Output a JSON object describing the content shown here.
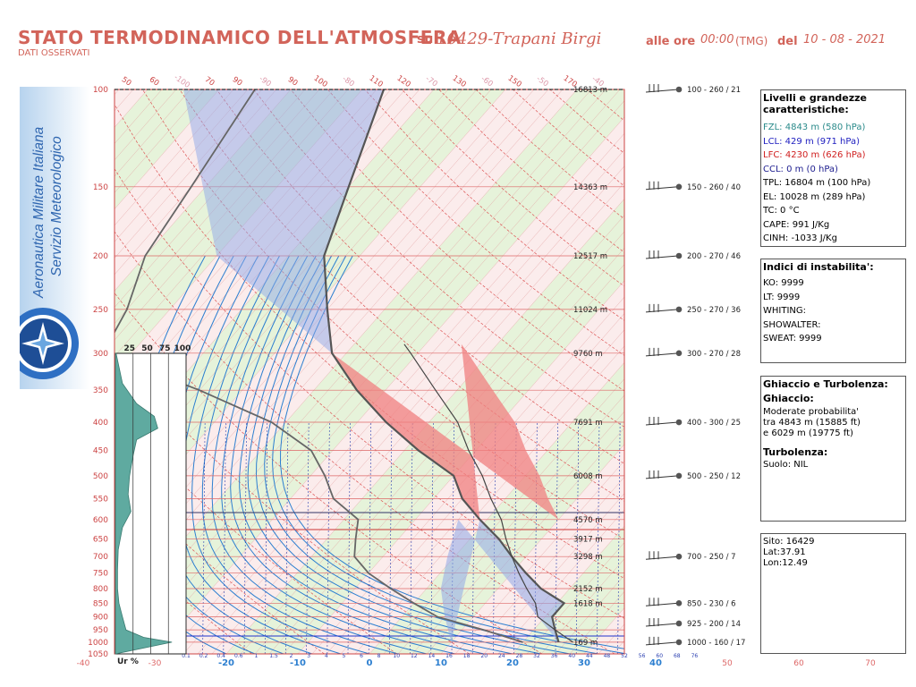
{
  "header": {
    "title": "STATO TERMODINAMICO DELL'ATMOSFERA",
    "subtitle": "DATI OSSERVATI",
    "station_label": "su",
    "station": "16429-Trapani Birgi",
    "time_label": "alle ore",
    "time": "00:00",
    "tmg": "(TMG)",
    "del_label": "del",
    "date": "10 - 08 - 2021"
  },
  "logo": {
    "line1": "Aeronautica Militare Italiana",
    "line2": "Servizio Meteorologico",
    "icon": "compass-rose-emblem"
  },
  "levels_box": {
    "title": "Livelli e grandezze caratteristiche:",
    "fzl": "FZL: 4843 m (580 hPa)",
    "lcl": "LCL: 429 m (971 hPa)",
    "lfc": "LFC: 4230 m (626 hPa)",
    "ccl": "CCL: 0 m (0 hPa)",
    "tpl": "TPL: 16804 m (100 hPa)",
    "el": "EL: 10028 m (289 hPa)",
    "tc": "TC: 0 °C",
    "cape": "CAPE: 991 J/Kg",
    "cinh": "CINH: -1033 J/Kg",
    "colors": {
      "fzl": "#2a8a8a",
      "lcl": "#2020c0",
      "lfc": "#d02020",
      "ccl": "#202090"
    }
  },
  "indices_box": {
    "title": "Indici di instabilita':",
    "ko": "KO: 9999",
    "lt": "LT: 9999",
    "whiting": "WHITING:",
    "showalter": "SHOWALTER:",
    "sweat": "SWEAT: 9999"
  },
  "ice_box": {
    "title": "Ghiaccio e Turbolenza:",
    "ice_title": "Ghiaccio:",
    "ice_l1": "Moderate probabilita'",
    "ice_l2": "tra 4843 m (15885 ft)",
    "ice_l3": "e 6029 m (19775 ft)",
    "turb_title": "Turbolenza:",
    "turb_text": "Suolo: NIL"
  },
  "site_box": {
    "site": "Sito: 16429",
    "lat": "Lat:37.91",
    "lon": "Lon:12.49"
  },
  "chart_data": {
    "type": "skew-t",
    "pressure_ticks": [
      100,
      150,
      200,
      250,
      300,
      350,
      400,
      450,
      500,
      550,
      600,
      650,
      700,
      750,
      800,
      850,
      900,
      950,
      1000,
      1050
    ],
    "height_labels": [
      {
        "p": 100,
        "h": "16813 m"
      },
      {
        "p": 150,
        "h": "14363 m"
      },
      {
        "p": 200,
        "h": "12517 m"
      },
      {
        "p": 250,
        "h": "11024 m"
      },
      {
        "p": 300,
        "h": "9760 m"
      },
      {
        "p": 400,
        "h": "7691 m"
      },
      {
        "p": 500,
        "h": "6008 m"
      },
      {
        "p": 600,
        "h": "4570 m"
      },
      {
        "p": 650,
        "h": "3917 m"
      },
      {
        "p": 700,
        "h": "3298 m"
      },
      {
        "p": 800,
        "h": "2152 m"
      },
      {
        "p": 850,
        "h": "1618 m"
      },
      {
        "p": 1000,
        "h": "169 m"
      }
    ],
    "temp_ticks_bottom": [
      -20,
      -10,
      0,
      10,
      20,
      30,
      40
    ],
    "temp_ticks_extra": [
      -40,
      -30,
      50,
      60,
      70
    ],
    "temp_ticks_top": [
      50,
      60,
      -100,
      70,
      90,
      -90,
      90,
      100,
      -80,
      110,
      120,
      -70,
      130,
      -60,
      150,
      -50,
      170,
      -40
    ],
    "mixing_ratio_ticks": [
      "0.1",
      "0.2",
      "0.4",
      "0.6",
      "1",
      "1.5",
      "2",
      "3",
      "4",
      "5",
      "6",
      "8",
      "10",
      "12",
      "14",
      "16",
      "18",
      "20",
      "24",
      "28",
      "32",
      "36",
      "40",
      "44",
      "48",
      "52",
      "56",
      "60",
      "68",
      "76"
    ],
    "rh_axis": {
      "label": "Ur %",
      "ticks": [
        "25",
        "50",
        "75",
        "100"
      ]
    },
    "winds": [
      {
        "p": 100,
        "label": "100 - 260 / 21"
      },
      {
        "p": 150,
        "label": "150 - 260 / 40"
      },
      {
        "p": 200,
        "label": "200 - 270 / 46"
      },
      {
        "p": 250,
        "label": "250 - 270 / 36"
      },
      {
        "p": 300,
        "label": "300 - 270 / 28"
      },
      {
        "p": 400,
        "label": "400 - 300 / 25"
      },
      {
        "p": 500,
        "label": "500 - 250 / 12"
      },
      {
        "p": 700,
        "label": "700 - 250 / 7"
      },
      {
        "p": 850,
        "label": "850 - 230 / 6"
      },
      {
        "p": 925,
        "label": "925 - 200 / 14"
      },
      {
        "p": 1000,
        "label": "1000 - 160 / 17"
      }
    ],
    "temperature_profile": [
      {
        "p": 100,
        "t": -67
      },
      {
        "p": 150,
        "t": -60
      },
      {
        "p": 200,
        "t": -55
      },
      {
        "p": 250,
        "t": -48
      },
      {
        "p": 300,
        "t": -42
      },
      {
        "p": 350,
        "t": -34
      },
      {
        "p": 400,
        "t": -26
      },
      {
        "p": 450,
        "t": -18
      },
      {
        "p": 500,
        "t": -10
      },
      {
        "p": 550,
        "t": -6
      },
      {
        "p": 600,
        "t": -1
      },
      {
        "p": 650,
        "t": 4
      },
      {
        "p": 700,
        "t": 8
      },
      {
        "p": 750,
        "t": 12
      },
      {
        "p": 800,
        "t": 16
      },
      {
        "p": 850,
        "t": 21
      },
      {
        "p": 900,
        "t": 21
      },
      {
        "p": 950,
        "t": 23
      },
      {
        "p": 1000,
        "t": 25
      }
    ],
    "dewpoint_profile": [
      {
        "p": 100,
        "t": -85
      },
      {
        "p": 150,
        "t": -82
      },
      {
        "p": 200,
        "t": -80
      },
      {
        "p": 250,
        "t": -76
      },
      {
        "p": 300,
        "t": -74
      },
      {
        "p": 350,
        "t": -56
      },
      {
        "p": 400,
        "t": -42
      },
      {
        "p": 450,
        "t": -33
      },
      {
        "p": 500,
        "t": -28
      },
      {
        "p": 550,
        "t": -24
      },
      {
        "p": 600,
        "t": -18
      },
      {
        "p": 650,
        "t": -16
      },
      {
        "p": 700,
        "t": -14
      },
      {
        "p": 750,
        "t": -10
      },
      {
        "p": 800,
        "t": -5
      },
      {
        "p": 850,
        "t": 0
      },
      {
        "p": 900,
        "t": 5
      },
      {
        "p": 950,
        "t": 13
      },
      {
        "p": 1000,
        "t": 20
      }
    ],
    "parcel_profile": [
      {
        "p": 1000,
        "t": 27
      },
      {
        "p": 950,
        "t": 23
      },
      {
        "p": 900,
        "t": 19
      },
      {
        "p": 850,
        "t": 17
      },
      {
        "p": 800,
        "t": 14
      },
      {
        "p": 750,
        "t": 11
      },
      {
        "p": 700,
        "t": 8
      },
      {
        "p": 650,
        "t": 5
      },
      {
        "p": 600,
        "t": 2
      },
      {
        "p": 550,
        "t": -2
      },
      {
        "p": 500,
        "t": -6
      },
      {
        "p": 450,
        "t": -11
      },
      {
        "p": 400,
        "t": -16
      },
      {
        "p": 350,
        "t": -23
      },
      {
        "p": 300,
        "t": -31
      },
      {
        "p": 289,
        "t": -33
      }
    ],
    "rh_profile": [
      {
        "p": 300,
        "rh": 1
      },
      {
        "p": 340,
        "rh": 10
      },
      {
        "p": 370,
        "rh": 30
      },
      {
        "p": 390,
        "rh": 55
      },
      {
        "p": 410,
        "rh": 60
      },
      {
        "p": 430,
        "rh": 30
      },
      {
        "p": 460,
        "rh": 25
      },
      {
        "p": 500,
        "rh": 20
      },
      {
        "p": 540,
        "rh": 18
      },
      {
        "p": 580,
        "rh": 22
      },
      {
        "p": 620,
        "rh": 10
      },
      {
        "p": 680,
        "rh": 4
      },
      {
        "p": 740,
        "rh": 3
      },
      {
        "p": 800,
        "rh": 3
      },
      {
        "p": 850,
        "rh": 5
      },
      {
        "p": 900,
        "rh": 10
      },
      {
        "p": 950,
        "rh": 15
      },
      {
        "p": 980,
        "rh": 40
      },
      {
        "p": 1000,
        "rh": 80
      }
    ],
    "colors": {
      "temperature": "#555555",
      "parcel": "#444444",
      "cape": "#f08080",
      "cinh": "#8fa8e8",
      "rh_fill": "#5faaa0",
      "grid_red": "#d66",
      "isotherm": "#2d7fd0"
    }
  }
}
